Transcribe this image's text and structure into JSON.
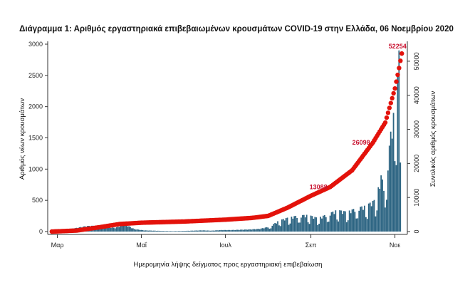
{
  "chart_data": {
    "type": "bar",
    "title": "Διάγραμμα 1: Αριθμός εργαστηριακά επιβεβαιωμένων κρουσμάτων COVID-19 στην Ελλάδα, 06 Νοεμβρίου 2020",
    "xlabel": "Ημερομηνία λήψης δείγματος προς εργαστηριακή επιβεβαίωση",
    "ylabel": "Αριθμός νέων κρουσμάτων",
    "y2label": "Συνολικός αριθμός κρουσμάτων",
    "x_ticks": [
      "Μαρ",
      "Μαΐ",
      "Ιουλ",
      "Σεπ",
      "Νοε"
    ],
    "ylim": [
      0,
      3000
    ],
    "y_ticks": [
      0,
      500,
      1000,
      1500,
      2000,
      2500,
      3000
    ],
    "y2lim": [
      0,
      55000
    ],
    "y2_ticks": [
      0,
      10000,
      20000,
      30000,
      40000,
      50000
    ],
    "colors": {
      "bars": "#2c6482",
      "cumulative": "#e3120b",
      "annotation": "#c8102e"
    },
    "series": [
      {
        "name": "",
        "kind": "bar",
        "axis": "left",
        "values": [
          {
            "date": "2020-02-26",
            "value": 2
          },
          {
            "date": "2020-03-06",
            "value": 25
          },
          {
            "date": "2020-03-15",
            "value": 60
          },
          {
            "date": "2020-03-22",
            "value": 90
          },
          {
            "date": "2020-03-29",
            "value": 95
          },
          {
            "date": "2020-04-05",
            "value": 80
          },
          {
            "date": "2020-04-12",
            "value": 60
          },
          {
            "date": "2020-04-19",
            "value": 120
          },
          {
            "date": "2020-04-26",
            "value": 40
          },
          {
            "date": "2020-05-03",
            "value": 20
          },
          {
            "date": "2020-05-10",
            "value": 15
          },
          {
            "date": "2020-05-17",
            "value": 10
          },
          {
            "date": "2020-05-24",
            "value": 8
          },
          {
            "date": "2020-05-31",
            "value": 10
          },
          {
            "date": "2020-06-07",
            "value": 15
          },
          {
            "date": "2020-06-14",
            "value": 20
          },
          {
            "date": "2020-06-21",
            "value": 15
          },
          {
            "date": "2020-06-28",
            "value": 25
          },
          {
            "date": "2020-07-05",
            "value": 25
          },
          {
            "date": "2020-07-12",
            "value": 30
          },
          {
            "date": "2020-07-19",
            "value": 35
          },
          {
            "date": "2020-07-26",
            "value": 45
          },
          {
            "date": "2020-08-02",
            "value": 80
          },
          {
            "date": "2020-08-09",
            "value": 180
          },
          {
            "date": "2020-08-16",
            "value": 230
          },
          {
            "date": "2020-08-23",
            "value": 260
          },
          {
            "date": "2020-08-30",
            "value": 270
          },
          {
            "date": "2020-09-06",
            "value": 220
          },
          {
            "date": "2020-09-13",
            "value": 280
          },
          {
            "date": "2020-09-20",
            "value": 350
          },
          {
            "date": "2020-09-27",
            "value": 320
          },
          {
            "date": "2020-10-04",
            "value": 380
          },
          {
            "date": "2020-10-11",
            "value": 420
          },
          {
            "date": "2020-10-18",
            "value": 520
          },
          {
            "date": "2020-10-22",
            "value": 900
          },
          {
            "date": "2020-10-25",
            "value": 700
          },
          {
            "date": "2020-10-29",
            "value": 1600
          },
          {
            "date": "2020-11-01",
            "value": 2050
          },
          {
            "date": "2020-11-03",
            "value": 2500
          },
          {
            "date": "2020-11-04",
            "value": 2900
          },
          {
            "date": "2020-11-05",
            "value": 1300
          }
        ]
      },
      {
        "name": "",
        "kind": "line",
        "axis": "right",
        "values": [
          {
            "date": "2020-02-26",
            "value": 0
          },
          {
            "date": "2020-03-15",
            "value": 300
          },
          {
            "date": "2020-04-01",
            "value": 1300
          },
          {
            "date": "2020-04-15",
            "value": 2200
          },
          {
            "date": "2020-05-01",
            "value": 2600
          },
          {
            "date": "2020-06-01",
            "value": 2950
          },
          {
            "date": "2020-07-01",
            "value": 3500
          },
          {
            "date": "2020-07-20",
            "value": 4000
          },
          {
            "date": "2020-08-01",
            "value": 4600
          },
          {
            "date": "2020-08-15",
            "value": 7000
          },
          {
            "date": "2020-09-01",
            "value": 10500
          },
          {
            "date": "2020-09-15",
            "value": 13088
          },
          {
            "date": "2020-10-01",
            "value": 18000
          },
          {
            "date": "2020-10-16",
            "value": 26098
          },
          {
            "date": "2020-10-25",
            "value": 32000
          },
          {
            "date": "2020-11-01",
            "value": 42000
          },
          {
            "date": "2020-11-04",
            "value": 48000
          },
          {
            "date": "2020-11-06",
            "value": 52254
          }
        ]
      }
    ],
    "annotations": [
      {
        "date": "2020-09-15",
        "value": 13088,
        "text": "13088"
      },
      {
        "date": "2020-10-16",
        "value": 26098,
        "text": "26098"
      },
      {
        "date": "2020-11-06",
        "value": 52254,
        "text": "52254"
      }
    ]
  }
}
